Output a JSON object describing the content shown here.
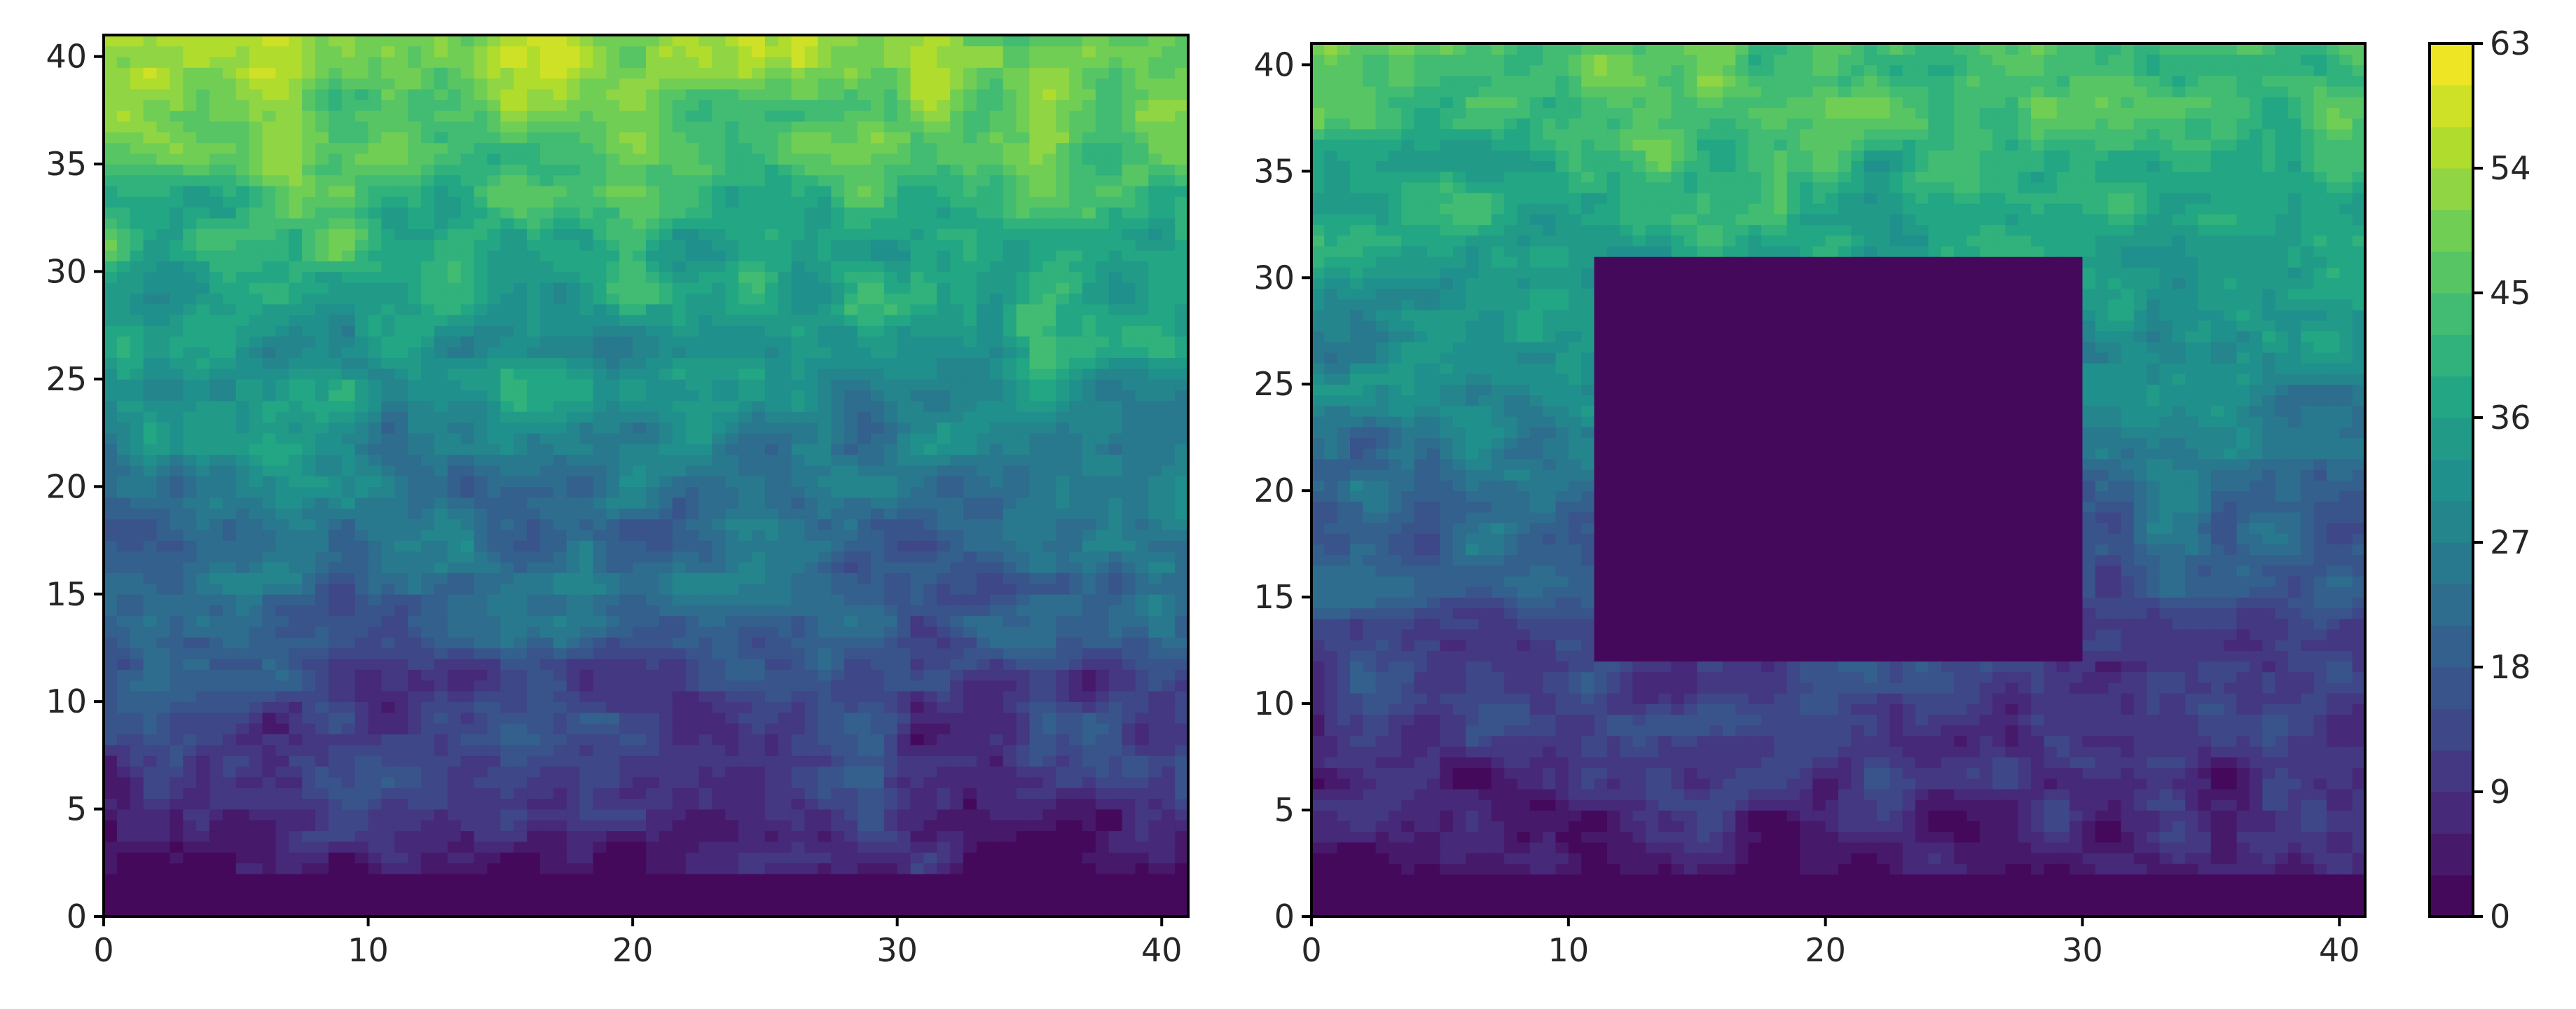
{
  "chart_data": [
    {
      "type": "heatmap",
      "subtype": "filled-contour",
      "title": "",
      "xlabel": "",
      "ylabel": "",
      "xlim": [
        0,
        41
      ],
      "ylim": [
        0,
        41
      ],
      "x_ticks": [
        0,
        10,
        20,
        30,
        40
      ],
      "y_ticks": [
        0,
        5,
        10,
        15,
        20,
        25,
        30,
        35,
        40
      ],
      "x_tick_labels": [
        "0",
        "10",
        "20",
        "30",
        "40"
      ],
      "y_tick_labels": [
        "0",
        "5",
        "10",
        "15",
        "20",
        "25",
        "30",
        "35",
        "40"
      ],
      "colormap": "viridis",
      "field_description": "noisy field increasing with y",
      "value_profile": [
        {
          "y": 0,
          "value": 0
        },
        {
          "y": 5,
          "value": 9
        },
        {
          "y": 10,
          "value": 13
        },
        {
          "y": 15,
          "value": 20
        },
        {
          "y": 20,
          "value": 26
        },
        {
          "y": 25,
          "value": 32
        },
        {
          "y": 30,
          "value": 38
        },
        {
          "y": 35,
          "value": 44
        },
        {
          "y": 40,
          "value": 52
        }
      ],
      "noise_amplitude": 10,
      "grid": false
    },
    {
      "type": "heatmap",
      "subtype": "filled-contour",
      "title": "",
      "xlabel": "",
      "ylabel": "",
      "xlim": [
        0,
        41
      ],
      "ylim": [
        0,
        41
      ],
      "x_ticks": [
        0,
        10,
        20,
        30,
        40
      ],
      "y_ticks": [
        0,
        5,
        10,
        15,
        20,
        25,
        30,
        35,
        40
      ],
      "x_tick_labels": [
        "0",
        "10",
        "20",
        "30",
        "40"
      ],
      "y_tick_labels": [
        "0",
        "5",
        "10",
        "15",
        "20",
        "25",
        "30",
        "35",
        "40"
      ],
      "colormap": "viridis",
      "field_description": "noisy field increasing with y, with a zero-valued rectangular region",
      "value_profile": [
        {
          "y": 0,
          "value": 0
        },
        {
          "y": 5,
          "value": 7
        },
        {
          "y": 10,
          "value": 11
        },
        {
          "y": 15,
          "value": 17
        },
        {
          "y": 20,
          "value": 23
        },
        {
          "y": 25,
          "value": 29
        },
        {
          "y": 30,
          "value": 34
        },
        {
          "y": 35,
          "value": 40
        },
        {
          "y": 40,
          "value": 46
        }
      ],
      "noise_amplitude": 9,
      "masked_region": {
        "x": [
          11,
          30
        ],
        "y": [
          12,
          31
        ],
        "value": 0
      },
      "grid": false
    }
  ],
  "colorbar": {
    "min": 0,
    "max": 63,
    "ticks": [
      0,
      9,
      18,
      27,
      36,
      45,
      54,
      63
    ],
    "tick_labels": [
      "0",
      "9",
      "18",
      "27",
      "36",
      "45",
      "54",
      "63"
    ],
    "levels": [
      0,
      3,
      6,
      9,
      12,
      15,
      18,
      21,
      24,
      27,
      30,
      33,
      36,
      39,
      42,
      45,
      48,
      51,
      54,
      57,
      60,
      63
    ],
    "colormap": "viridis"
  }
}
